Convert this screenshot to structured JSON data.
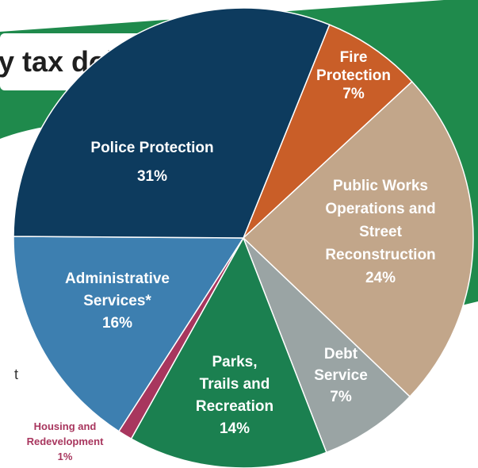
{
  "heading": {
    "fragment": "y tax dollars go",
    "stray_char": "t"
  },
  "colors": {
    "background_band": "#1f8a4c",
    "police": "#0d3b5e",
    "fire": "#c95e28",
    "public_works": "#c2a68a",
    "debt": "#9aa4a4",
    "parks": "#1b8050",
    "housing": "#a8365e",
    "admin": "#3d7fb0",
    "housing_label": "#a8365e"
  },
  "chart_data": {
    "type": "pie",
    "title": "",
    "slices": [
      {
        "label_lines": [
          "Fire",
          "Protection",
          "7%"
        ],
        "name": "Fire Protection",
        "value": 7,
        "color": "#c95e28"
      },
      {
        "label_lines": [
          "Public Works",
          "Operations and",
          "Street",
          "Reconstruction",
          "24%"
        ],
        "name": "Public Works Operations and Street Reconstruction",
        "value": 24,
        "color": "#c2a68a"
      },
      {
        "label_lines": [
          "Debt",
          "Service",
          "7%"
        ],
        "name": "Debt Service",
        "value": 7,
        "color": "#9aa4a4"
      },
      {
        "label_lines": [
          "Parks,",
          "Trails and",
          "Recreation",
          "14%"
        ],
        "name": "Parks, Trails and Recreation",
        "value": 14,
        "color": "#1b8050"
      },
      {
        "label_lines": [
          "Housing and",
          "Redevelopment",
          "1%"
        ],
        "name": "Housing and Redevelopment",
        "value": 1,
        "color": "#a8365e",
        "outside": true
      },
      {
        "label_lines": [
          "Administrative",
          "Services*",
          "16%"
        ],
        "name": "Administrative Services*",
        "value": 16,
        "color": "#3d7fb0"
      },
      {
        "label_lines": [
          "Police Protection",
          "31%"
        ],
        "name": "Police Protection",
        "value": 31,
        "color": "#0d3b5e"
      }
    ]
  }
}
